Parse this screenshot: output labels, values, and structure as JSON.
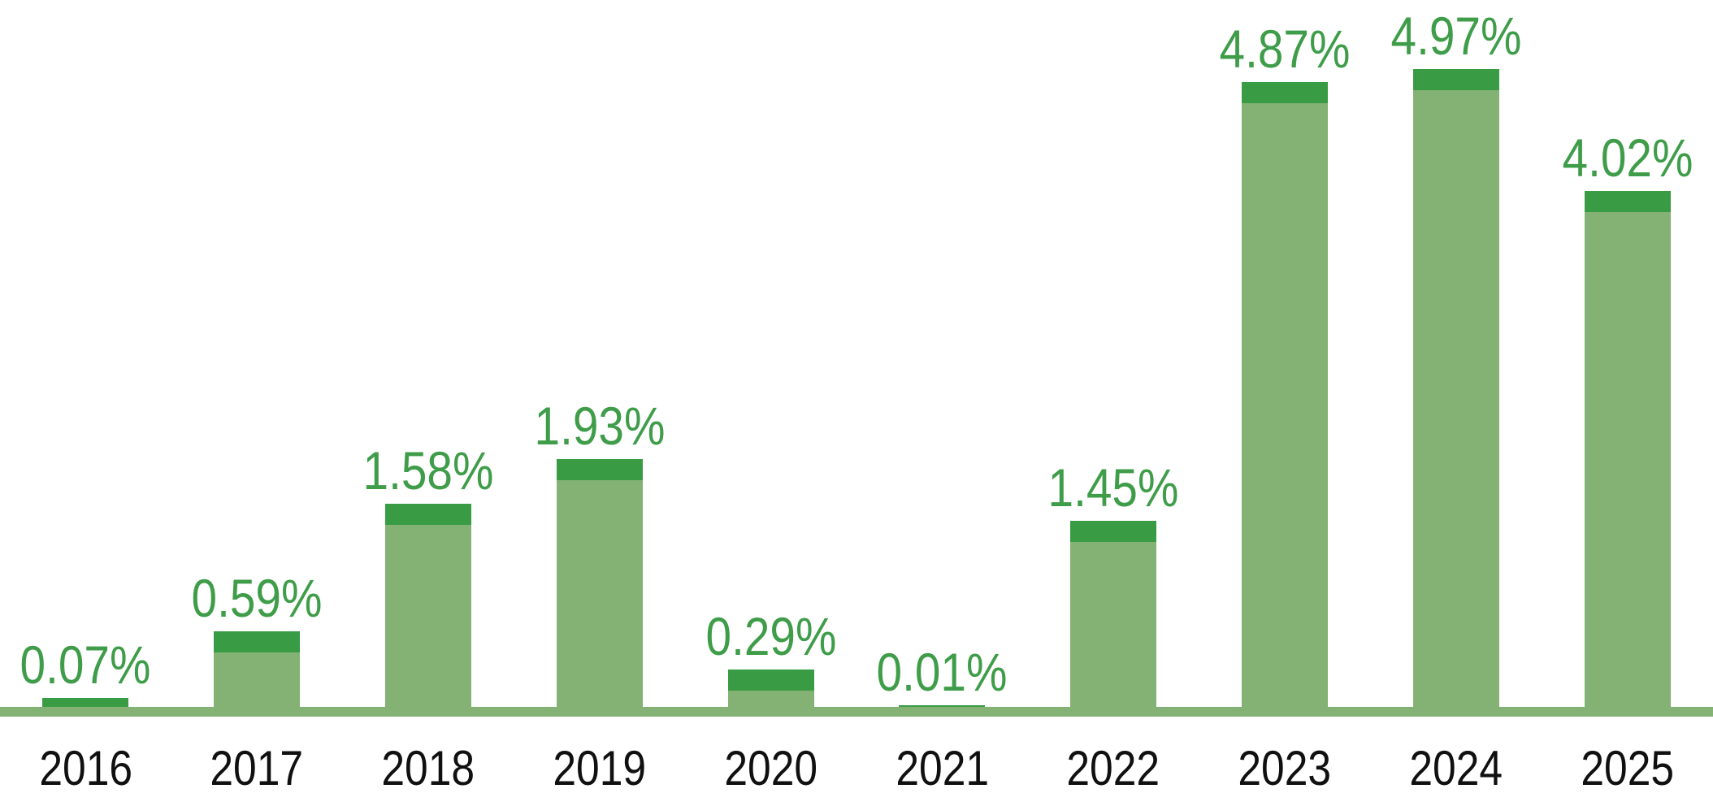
{
  "chart_data": {
    "type": "bar",
    "title": "",
    "xlabel": "",
    "ylabel": "",
    "categories": [
      "2016",
      "2017",
      "2018",
      "2019",
      "2020",
      "2021",
      "2022",
      "2023",
      "2024",
      "2025"
    ],
    "values": [
      0.07,
      0.59,
      1.58,
      1.93,
      0.29,
      0.01,
      1.45,
      4.87,
      4.97,
      4.02
    ],
    "value_labels": [
      "0.07%",
      "0.59%",
      "1.58%",
      "1.93%",
      "0.29%",
      "0.01%",
      "1.45%",
      "4.87%",
      "4.97%",
      "4.02%"
    ],
    "ylim": [
      0,
      5.5
    ],
    "grid": false,
    "legend_position": "none",
    "bar_style": "light body with dark top cap",
    "colors": {
      "bar_body": "#84b274",
      "bar_cap": "#3a9b45",
      "value_label": "#3f9d4a",
      "year_label": "#101010",
      "axis_line": "#84b274",
      "background": "#ffffff"
    }
  }
}
